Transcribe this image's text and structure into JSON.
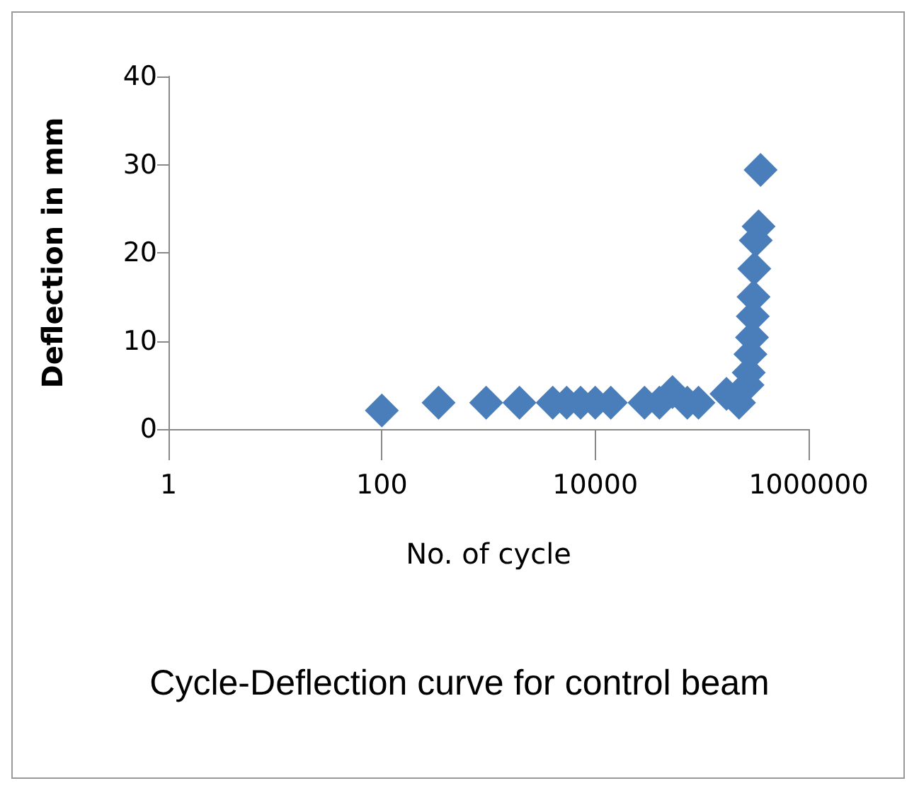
{
  "chart_data": {
    "type": "scatter",
    "title": "Cycle-Deflection curve for control beam",
    "xlabel": "No. of cycle",
    "ylabel": "Deflection in mm",
    "log": "x",
    "marker": "diamond",
    "grid": false,
    "xlim": [
      1,
      1000000
    ],
    "xticks": [
      1,
      100,
      10000,
      1000000
    ],
    "ylim": [
      0,
      40
    ],
    "yticks": [
      0,
      10,
      20,
      30,
      40
    ],
    "series": [
      {
        "color": "#4a7ebb",
        "x": [
          100,
          340,
          950,
          1950,
          4000,
          5400,
          7300,
          10000,
          14000,
          29000,
          40000,
          53000,
          73000,
          93000,
          170000,
          223000,
          268000,
          275000,
          285000,
          295000,
          300000,
          305000,
          310000,
          320000,
          340000,
          355000
        ],
        "values": [
          2.1,
          3,
          3,
          3,
          3,
          3,
          3,
          3,
          3,
          3,
          3,
          4.2,
          3,
          3,
          4,
          3,
          5,
          6.4,
          8.5,
          10.4,
          12.8,
          15,
          18.2,
          21.4,
          23,
          29.4
        ]
      }
    ]
  }
}
